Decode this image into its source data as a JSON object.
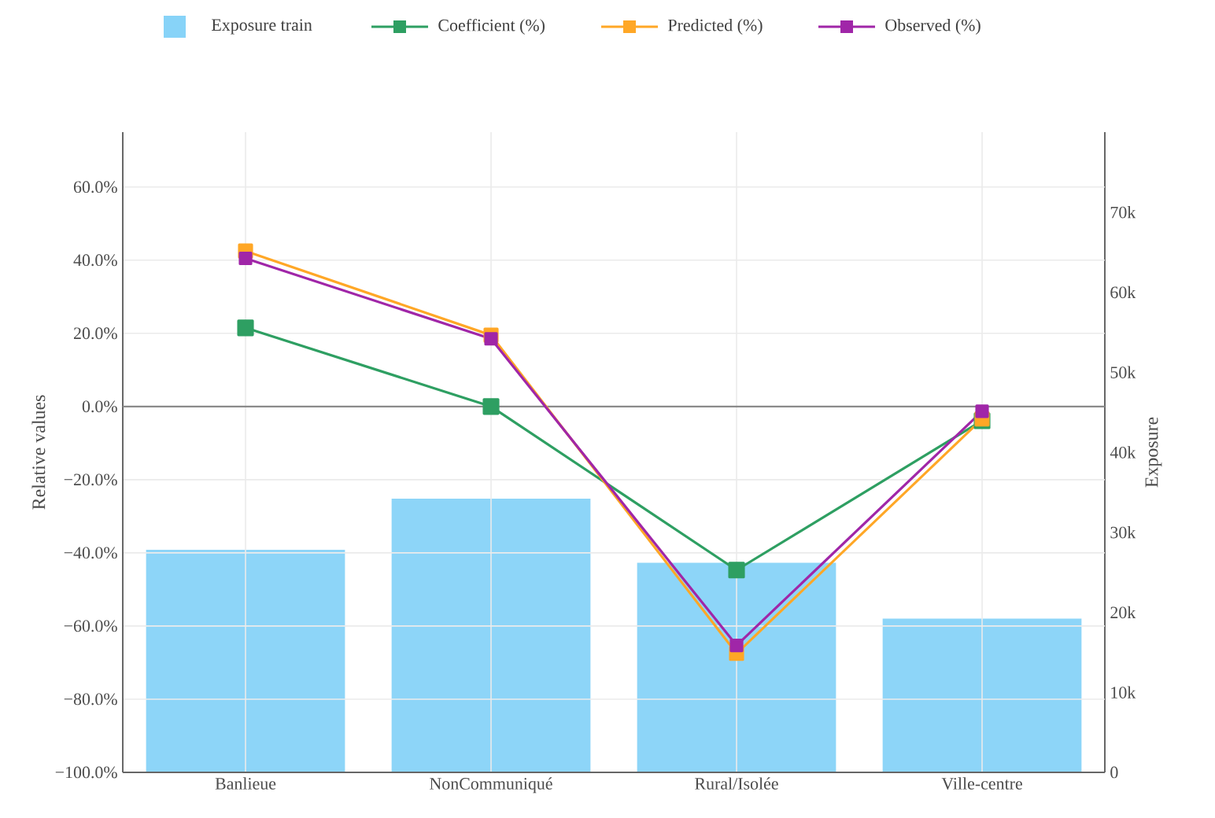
{
  "chart_data": {
    "type": "line",
    "categories": [
      "Banlieue",
      "NonCommuniqué",
      "Rural/Isolée",
      "Ville-centre"
    ],
    "series": [
      {
        "name": "Exposure train",
        "type": "bar",
        "axis": "y2",
        "color": "#87d3f8",
        "values": [
          27800,
          34200,
          26200,
          19200
        ]
      },
      {
        "name": "Coefficient (%)",
        "color": "#2e9f62",
        "values": [
          21.5,
          0,
          -44.7,
          -3.9
        ]
      },
      {
        "name": "Predicted (%)",
        "color": "#ffa726",
        "values": [
          42.5,
          19.5,
          -67.5,
          -3.4
        ]
      },
      {
        "name": "Observed (%)",
        "color": "#a026a8",
        "values": [
          40.5,
          18.5,
          -65.3,
          -1.3
        ]
      }
    ],
    "ylabel": "Relative values",
    "y2label": "Exposure",
    "ylim": [
      -100,
      75
    ],
    "yticks": [
      {
        "value": -100,
        "label": "−100.0%"
      },
      {
        "value": -80,
        "label": "−80.0%"
      },
      {
        "value": -60,
        "label": "−60.0%"
      },
      {
        "value": -40,
        "label": "−40.0%"
      },
      {
        "value": -20,
        "label": "−20.0%"
      },
      {
        "value": 0,
        "label": "0.0%"
      },
      {
        "value": 20,
        "label": "20.0%"
      },
      {
        "value": 40,
        "label": "40.0%"
      },
      {
        "value": 60,
        "label": "60.0%"
      }
    ],
    "y2lim": [
      0,
      80000
    ],
    "y2ticks": [
      {
        "value": 0,
        "label": "0"
      },
      {
        "value": 10000,
        "label": "10k"
      },
      {
        "value": 20000,
        "label": "20k"
      },
      {
        "value": 30000,
        "label": "30k"
      },
      {
        "value": 40000,
        "label": "40k"
      },
      {
        "value": 50000,
        "label": "50k"
      },
      {
        "value": 60000,
        "label": "60k"
      },
      {
        "value": 70000,
        "label": "70k"
      }
    ],
    "ref_lines": [
      {
        "axis": "y",
        "value": 0,
        "color": "#8a8a8a"
      }
    ],
    "grid": true,
    "legend": "top",
    "marker": "square"
  }
}
